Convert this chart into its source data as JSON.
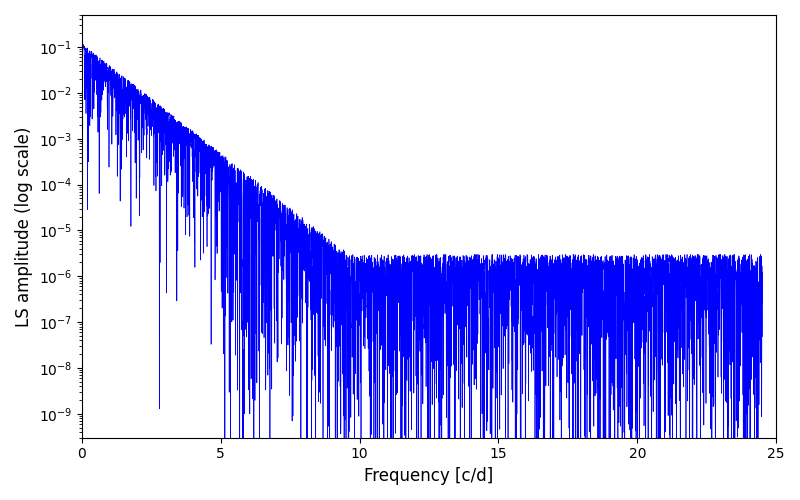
{
  "xlabel": "Frequency [c/d]",
  "ylabel": "LS amplitude (log scale)",
  "xlim": [
    0,
    25
  ],
  "ylim_log": [
    3e-10,
    0.5
  ],
  "line_color": "#0000ff",
  "line_width": 0.5,
  "figsize": [
    8.0,
    5.0
  ],
  "dpi": 100,
  "yscale": "log",
  "freq_max": 24.5,
  "n_points": 5000,
  "seed": 12345
}
